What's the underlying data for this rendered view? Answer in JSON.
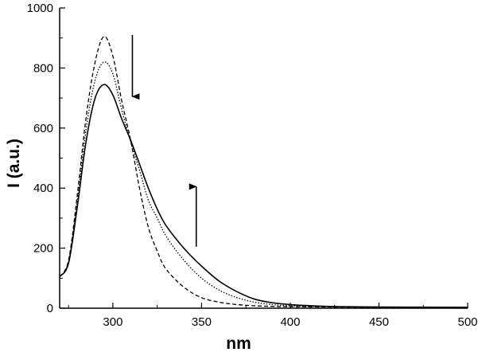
{
  "chart_data": {
    "type": "line",
    "title": "",
    "xlabel": "nm",
    "ylabel": "I (a.u.)",
    "xlim": [
      270,
      500
    ],
    "ylim": [
      0,
      1000
    ],
    "xticks": [
      300,
      350,
      400,
      450,
      500
    ],
    "yticks": [
      0,
      200,
      400,
      600,
      800,
      1000
    ],
    "grid": false,
    "legend": "none",
    "series": [
      {
        "style": "dashed",
        "color": "#000000",
        "x": [
          270,
          275,
          280,
          285,
          290,
          295,
          300,
          305,
          310,
          315,
          320,
          325,
          330,
          340,
          350,
          360,
          370,
          380,
          390,
          400,
          420,
          450,
          500
        ],
        "y": [
          105,
          160,
          380,
          640,
          820,
          905,
          840,
          690,
          560,
          400,
          270,
          190,
          130,
          70,
          35,
          20,
          12,
          8,
          6,
          5,
          4,
          3,
          3
        ]
      },
      {
        "style": "dotted",
        "color": "#000000",
        "x": [
          270,
          275,
          280,
          285,
          290,
          295,
          300,
          305,
          310,
          315,
          320,
          325,
          330,
          340,
          350,
          360,
          370,
          380,
          390,
          400,
          420,
          450,
          500
        ],
        "y": [
          105,
          155,
          360,
          600,
          760,
          820,
          780,
          660,
          555,
          460,
          360,
          300,
          240,
          160,
          100,
          60,
          35,
          20,
          12,
          8,
          5,
          4,
          3
        ]
      },
      {
        "style": "solid",
        "color": "#000000",
        "x": [
          270,
          275,
          280,
          285,
          290,
          295,
          300,
          305,
          310,
          315,
          320,
          325,
          330,
          340,
          350,
          360,
          370,
          380,
          390,
          400,
          420,
          450,
          500
        ],
        "y": [
          105,
          150,
          340,
          560,
          700,
          745,
          710,
          630,
          560,
          480,
          400,
          330,
          275,
          200,
          140,
          90,
          55,
          30,
          18,
          12,
          6,
          4,
          3
        ]
      }
    ],
    "annotations": [
      {
        "type": "arrow",
        "direction": "down",
        "x": 311,
        "y_from": 910,
        "y_to": 705
      },
      {
        "type": "arrow",
        "direction": "up",
        "x": 347,
        "y_from": 205,
        "y_to": 405
      }
    ]
  }
}
